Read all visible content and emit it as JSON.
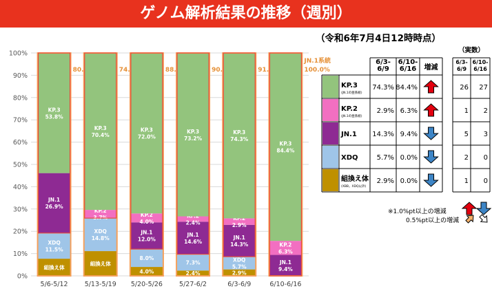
{
  "header": {
    "title": "ゲノム解析結果の推移（週別）",
    "as_of": "（令和6年7月4日12時時点）"
  },
  "colors": {
    "banner": "#e8321e",
    "KP.3": "#93c47d",
    "KP.2": "#f26fc1",
    "JN.1": "#8e2a93",
    "XDQ": "#9fc5e8",
    "recombinant": "#bf9000",
    "outline": "#f6a05b",
    "up": "#e3000f",
    "down": "#3d85c6"
  },
  "chart_data": {
    "type": "bar",
    "stacked": true,
    "percent": true,
    "categories": [
      "5/6-5/12",
      "5/13-5/19",
      "5/20-5/26",
      "5/27-6/2",
      "6/3-6/9",
      "6/10-6/16"
    ],
    "ylim": [
      0,
      100
    ],
    "y_ticks": [
      "0%",
      "10%",
      "20%",
      "30%",
      "40%",
      "50%",
      "60%",
      "70%",
      "80%",
      "90%",
      "100%"
    ],
    "series": [
      {
        "name": "組換え体",
        "key": "recombinant",
        "values": [
          7.7,
          11.1,
          4.0,
          2.4,
          2.9,
          0.0
        ],
        "labels": [
          "組換え体",
          "組換え体",
          "4.0%",
          "2.4%",
          "2.9%",
          ""
        ]
      },
      {
        "name": "XDQ",
        "key": "XDQ",
        "values": [
          11.5,
          14.8,
          8.0,
          7.3,
          5.7,
          0.0
        ],
        "labels": [
          "XDQ\n11.5%",
          "XDQ\n14.8%",
          "8.0%",
          "7.3%",
          "XDQ\n5.7%",
          ""
        ]
      },
      {
        "name": "JN.1",
        "key": "JN.1",
        "values": [
          26.9,
          0,
          12.0,
          14.6,
          14.3,
          9.4
        ],
        "labels": [
          "JN.1\n26.9%",
          "",
          "JN.1\n12.0%",
          "JN.1\n14.6%",
          "JN.1\n14.3%",
          "JN.1\n9.4%"
        ]
      },
      {
        "name": "KP.2",
        "key": "KP.2",
        "values": [
          0,
          3.7,
          4.0,
          2.4,
          2.9,
          6.3
        ],
        "labels": [
          "",
          "KP.2\n3.7%",
          "KP.2\n4.0%",
          "KP.2\n2.4%",
          "KP.2\n2.9%",
          "KP.2\n6.3%"
        ]
      },
      {
        "name": "KP.3",
        "key": "KP.3",
        "values": [
          53.8,
          70.4,
          72.0,
          73.2,
          74.3,
          84.4
        ],
        "labels": [
          "KP.3\n53.8%",
          "KP.3\n70.4%",
          "KP.3\n72.0%",
          "KP.3\n73.2%",
          "KP.3\n74.3%",
          "KP.3\n84.4%"
        ]
      }
    ],
    "jn1_lineage": {
      "label": "JN.1系統",
      "values": [
        "80.7%",
        "74.1%",
        "88.0%",
        "90.2%",
        "91.5%",
        "100.0%"
      ]
    }
  },
  "table": {
    "headers": {
      "col1": "6/3-\n6/9",
      "col2": "6/10-\n6/16",
      "change": "増減"
    },
    "count_title": "（実数）",
    "count_headers": {
      "col1": "6/3-\n6/9",
      "col2": "6/10-\n6/16"
    },
    "rows": [
      {
        "key": "KP.3",
        "name": "KP.3",
        "sub": "(JN.1の亜系統)",
        "v1": "74.3%",
        "v2": "84.4%",
        "trend": "up",
        "n1": "26",
        "n2": "27"
      },
      {
        "key": "KP.2",
        "name": "KP.2",
        "sub": "(JN.1の亜系統)",
        "v1": "2.9%",
        "v2": "6.3%",
        "trend": "up",
        "n1": "1",
        "n2": "2"
      },
      {
        "key": "JN.1",
        "name": "JN.1",
        "sub": "",
        "v1": "14.3%",
        "v2": "9.4%",
        "trend": "down",
        "n1": "5",
        "n2": "3"
      },
      {
        "key": "XDQ",
        "name": "XDQ",
        "sub": "",
        "v1": "5.7%",
        "v2": "0.0%",
        "trend": "down",
        "n1": "2",
        "n2": "0"
      },
      {
        "key": "recombinant",
        "name": "組換え体",
        "sub": "(XBB，XDQ以外)",
        "v1": "2.9%",
        "v2": "0.0%",
        "trend": "down",
        "n1": "1",
        "n2": "0"
      }
    ]
  },
  "legend_notes": {
    "line1": "※1.0%pt以上の増減",
    "line2": "0.5%pt以上の増減"
  }
}
